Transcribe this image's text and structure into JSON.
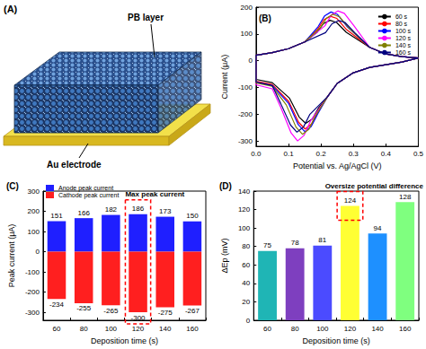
{
  "diagram": {
    "title": "(A)",
    "layer_label": "PB layer",
    "electrode_label": "Au electrode"
  },
  "chart_data": [
    {
      "type": "line",
      "title": "(B)",
      "x_label": "Potential vs. Ag/AgCl (V)",
      "y_label": "Current (μA)",
      "xlim": [
        0,
        0.5
      ],
      "xticks": [
        {
          "value": 0,
          "label": "0.0"
        },
        0.1,
        0.2,
        0.3,
        0.4,
        0.5
      ],
      "ylim": [
        -320,
        200
      ],
      "yticks": [
        -300,
        -200,
        -100,
        0,
        100,
        200
      ],
      "grid": false,
      "legend": "top-right",
      "series": [
        {
          "name": "60 s",
          "color": "#000000",
          "x": [
            0.5,
            0.45,
            0.4,
            0.35,
            0.3,
            0.25,
            0.22,
            0.193,
            0.173,
            0.153,
            0.133,
            0.103,
            0.05,
            0,
            0,
            0.05,
            0.1,
            0.15,
            0.188,
            0.208,
            0.228,
            0.248,
            0.278,
            0.35,
            0.4,
            0.45,
            0.5
          ],
          "values": [
            10,
            -5,
            -15,
            -25,
            -45,
            -85,
            -135,
            -176,
            -218,
            -234,
            -211,
            -140,
            -82,
            -70,
            20,
            30,
            45,
            70,
            106,
            139,
            151,
            143,
            106,
            50,
            25,
            15,
            10
          ]
        },
        {
          "name": "80 s",
          "color": "#ff0000",
          "x": [
            0.5,
            0.45,
            0.4,
            0.35,
            0.3,
            0.25,
            0.22,
            0.191,
            0.171,
            0.151,
            0.131,
            0.101,
            0.05,
            0,
            0,
            0.05,
            0.1,
            0.15,
            0.189,
            0.209,
            0.229,
            0.249,
            0.279,
            0.35,
            0.4,
            0.45,
            0.5
          ],
          "values": [
            10,
            -5,
            -15,
            -25,
            -45,
            -85,
            -135,
            -191,
            -237,
            -255,
            -230,
            -153,
            -89,
            -77,
            20,
            30,
            45,
            70,
            116,
            153,
            166,
            158,
            116,
            50,
            25,
            15,
            10
          ]
        },
        {
          "name": "100 s",
          "color": "#0000ff",
          "x": [
            0.5,
            0.45,
            0.4,
            0.35,
            0.3,
            0.25,
            0.22,
            0.19,
            0.17,
            0.15,
            0.13,
            0.1,
            0.05,
            0,
            0,
            0.05,
            0.1,
            0.15,
            0.191,
            0.211,
            0.231,
            0.251,
            0.281,
            0.35,
            0.4,
            0.45,
            0.5
          ],
          "values": [
            10,
            -5,
            -15,
            -25,
            -45,
            -85,
            -135,
            -199,
            -246,
            -265,
            -239,
            -159,
            -93,
            -80,
            20,
            30,
            45,
            70,
            127,
            167,
            182,
            173,
            127,
            50,
            25,
            15,
            10
          ]
        },
        {
          "name": "120 s",
          "color": "#ff00ff",
          "x": [
            0.5,
            0.45,
            0.4,
            0.35,
            0.3,
            0.25,
            0.22,
            0.168,
            0.148,
            0.128,
            0.108,
            0.078,
            0.05,
            0,
            0,
            0.05,
            0.1,
            0.15,
            0.212,
            0.232,
            0.252,
            0.272,
            0.302,
            0.35,
            0.4,
            0.45,
            0.5
          ],
          "values": [
            10,
            -5,
            -15,
            -25,
            -45,
            -85,
            -135,
            -225,
            -279,
            -300,
            -270,
            -180,
            -105,
            -90,
            20,
            30,
            45,
            70,
            130,
            171,
            186,
            177,
            130,
            50,
            25,
            15,
            10
          ]
        },
        {
          "name": "140 s",
          "color": "#808000",
          "x": [
            0.5,
            0.45,
            0.4,
            0.35,
            0.3,
            0.25,
            0.22,
            0.183,
            0.163,
            0.143,
            0.123,
            0.093,
            0.05,
            0,
            0,
            0.05,
            0.1,
            0.15,
            0.197,
            0.217,
            0.237,
            0.257,
            0.287,
            0.35,
            0.4,
            0.45,
            0.5
          ],
          "values": [
            10,
            -5,
            -15,
            -25,
            -45,
            -85,
            -135,
            -206,
            -256,
            -275,
            -248,
            -165,
            -96,
            -83,
            20,
            30,
            45,
            70,
            121,
            159,
            173,
            164,
            121,
            50,
            25,
            15,
            10
          ]
        },
        {
          "name": "160 s",
          "color": "#000080",
          "x": [
            0.5,
            0.45,
            0.4,
            0.35,
            0.3,
            0.25,
            0.22,
            0.166,
            0.146,
            0.126,
            0.106,
            0.076,
            0.05,
            0,
            0,
            0.05,
            0.1,
            0.15,
            0.214,
            0.234,
            0.254,
            0.274,
            0.304,
            0.35,
            0.4,
            0.45,
            0.5
          ],
          "values": [
            10,
            -5,
            -15,
            -25,
            -45,
            -85,
            -135,
            -200,
            -248,
            -267,
            -240,
            -160,
            -93,
            -80,
            20,
            30,
            45,
            70,
            105,
            138,
            150,
            143,
            105,
            50,
            25,
            15,
            10
          ]
        }
      ]
    },
    {
      "type": "bar",
      "title": "(C)",
      "x_label": "Deposition time (s)",
      "y_label": "Peak current (μA)",
      "categories": [
        "60",
        "80",
        "100",
        "120",
        "140",
        "160"
      ],
      "ylim": [
        -340,
        300
      ],
      "yticks": [
        -300,
        -200,
        -100,
        0,
        100,
        200,
        300
      ],
      "grid": false,
      "legend": "top-left",
      "stacked": true,
      "data_labels": true,
      "series": [
        {
          "name": "Anode peak current",
          "color": "#1f1fff",
          "values": [
            151,
            166,
            182,
            186,
            173,
            150
          ]
        },
        {
          "name": "Cathode peak current",
          "color": "#ff1f1f",
          "values": [
            -234,
            -255,
            -265,
            -300,
            -275,
            -267
          ]
        }
      ],
      "annotations": [
        {
          "text": "Max peak current",
          "category": "120"
        }
      ]
    },
    {
      "type": "bar",
      "title": "(D)",
      "x_label": "Deposition time (s)",
      "y_label": "ΔEp (mV)",
      "categories": [
        "60",
        "80",
        "100",
        "120",
        "140",
        "160"
      ],
      "values": [
        75,
        78,
        81,
        124,
        94,
        128
      ],
      "colors": [
        "#1fb5b5",
        "#7e3fbf",
        "#4b4bff",
        "#ffff33",
        "#1e90ff",
        "#7fff7f"
      ],
      "ylim": [
        0,
        140
      ],
      "yticks": [
        0,
        20,
        40,
        60,
        80,
        100,
        120,
        140
      ],
      "grid": false,
      "data_labels": true,
      "annotations": [
        {
          "text": "Oversize potential difference",
          "category": "120"
        }
      ]
    }
  ]
}
